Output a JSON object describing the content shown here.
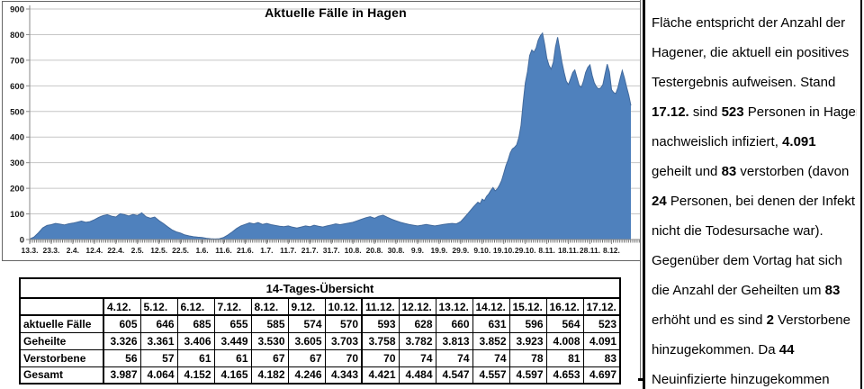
{
  "chart_data": {
    "type": "area",
    "title": "Aktuelle Fälle in Hagen",
    "series_name": "aktuelle Fälle",
    "legend": "none",
    "grid": true,
    "y_axis": {
      "min": 0,
      "max": 900,
      "step": 100
    },
    "x_axis": {
      "tick_interval_days": 10,
      "total_days": 279,
      "start_label": "13.3.",
      "end_label": "17.12.",
      "tick_labels": [
        "13.3.",
        "23.3.",
        "2.4.",
        "12.4.",
        "22.4.",
        "2.5.",
        "12.5.",
        "22.5.",
        "1.6.",
        "11.6.",
        "21.6.",
        "1.7.",
        "11.7.",
        "21.7.",
        "31.7.",
        "10.8.",
        "20.8.",
        "30.8.",
        "9.9.",
        "19.9.",
        "29.9.",
        "9.10.",
        "19.10.",
        "29.10.",
        "8.11.",
        "18.11.",
        "28.11.",
        "8.12."
      ]
    },
    "colors": {
      "area_fill": "#4f81bd",
      "area_edge": "#41699c",
      "gridline": "#c6c6c6",
      "axis": "#8a8a8a"
    },
    "points": [
      [
        0,
        2
      ],
      [
        2,
        10
      ],
      [
        4,
        26
      ],
      [
        6,
        45
      ],
      [
        8,
        55
      ],
      [
        10,
        58
      ],
      [
        12,
        63
      ],
      [
        14,
        60
      ],
      [
        16,
        57
      ],
      [
        18,
        61
      ],
      [
        20,
        64
      ],
      [
        22,
        68
      ],
      [
        24,
        72
      ],
      [
        26,
        67
      ],
      [
        28,
        70
      ],
      [
        30,
        77
      ],
      [
        32,
        86
      ],
      [
        34,
        93
      ],
      [
        36,
        97
      ],
      [
        38,
        91
      ],
      [
        40,
        88
      ],
      [
        42,
        101
      ],
      [
        44,
        97
      ],
      [
        46,
        92
      ],
      [
        48,
        98
      ],
      [
        50,
        94
      ],
      [
        52,
        104
      ],
      [
        54,
        89
      ],
      [
        56,
        83
      ],
      [
        58,
        88
      ],
      [
        60,
        74
      ],
      [
        62,
        63
      ],
      [
        64,
        50
      ],
      [
        66,
        38
      ],
      [
        68,
        30
      ],
      [
        70,
        25
      ],
      [
        72,
        18
      ],
      [
        74,
        14
      ],
      [
        76,
        11
      ],
      [
        78,
        9
      ],
      [
        80,
        8
      ],
      [
        82,
        5
      ],
      [
        84,
        3
      ],
      [
        86,
        2
      ],
      [
        88,
        3
      ],
      [
        90,
        8
      ],
      [
        92,
        18
      ],
      [
        94,
        30
      ],
      [
        96,
        43
      ],
      [
        98,
        53
      ],
      [
        100,
        59
      ],
      [
        102,
        65
      ],
      [
        104,
        61
      ],
      [
        106,
        66
      ],
      [
        108,
        59
      ],
      [
        110,
        63
      ],
      [
        112,
        58
      ],
      [
        114,
        55
      ],
      [
        116,
        52
      ],
      [
        118,
        50
      ],
      [
        120,
        53
      ],
      [
        122,
        48
      ],
      [
        124,
        45
      ],
      [
        126,
        49
      ],
      [
        128,
        53
      ],
      [
        130,
        50
      ],
      [
        132,
        56
      ],
      [
        134,
        52
      ],
      [
        136,
        49
      ],
      [
        138,
        53
      ],
      [
        140,
        57
      ],
      [
        142,
        61
      ],
      [
        144,
        58
      ],
      [
        146,
        61
      ],
      [
        148,
        64
      ],
      [
        150,
        67
      ],
      [
        152,
        73
      ],
      [
        154,
        79
      ],
      [
        156,
        85
      ],
      [
        158,
        89
      ],
      [
        160,
        83
      ],
      [
        162,
        91
      ],
      [
        164,
        95
      ],
      [
        166,
        87
      ],
      [
        168,
        79
      ],
      [
        170,
        73
      ],
      [
        172,
        67
      ],
      [
        174,
        63
      ],
      [
        176,
        59
      ],
      [
        178,
        56
      ],
      [
        180,
        53
      ],
      [
        182,
        56
      ],
      [
        184,
        59
      ],
      [
        186,
        56
      ],
      [
        188,
        53
      ],
      [
        190,
        56
      ],
      [
        192,
        59
      ],
      [
        194,
        61
      ],
      [
        196,
        63
      ],
      [
        198,
        61
      ],
      [
        200,
        70
      ],
      [
        202,
        88
      ],
      [
        204,
        108
      ],
      [
        206,
        128
      ],
      [
        208,
        146
      ],
      [
        209,
        140
      ],
      [
        210,
        158
      ],
      [
        211,
        152
      ],
      [
        212,
        168
      ],
      [
        213,
        178
      ],
      [
        214,
        192
      ],
      [
        215,
        203
      ],
      [
        216,
        190
      ],
      [
        217,
        198
      ],
      [
        218,
        212
      ],
      [
        219,
        230
      ],
      [
        220,
        258
      ],
      [
        221,
        288
      ],
      [
        222,
        310
      ],
      [
        223,
        338
      ],
      [
        224,
        354
      ],
      [
        225,
        360
      ],
      [
        226,
        370
      ],
      [
        227,
        398
      ],
      [
        228,
        445
      ],
      [
        229,
        535
      ],
      [
        230,
        612
      ],
      [
        231,
        655
      ],
      [
        232,
        718
      ],
      [
        233,
        740
      ],
      [
        234,
        732
      ],
      [
        235,
        748
      ],
      [
        236,
        778
      ],
      [
        237,
        796
      ],
      [
        238,
        806
      ],
      [
        239,
        762
      ],
      [
        240,
        708
      ],
      [
        241,
        680
      ],
      [
        242,
        665
      ],
      [
        243,
        692
      ],
      [
        244,
        752
      ],
      [
        245,
        790
      ],
      [
        246,
        742
      ],
      [
        247,
        692
      ],
      [
        248,
        652
      ],
      [
        249,
        618
      ],
      [
        250,
        605
      ],
      [
        251,
        628
      ],
      [
        252,
        652
      ],
      [
        253,
        662
      ],
      [
        254,
        632
      ],
      [
        255,
        602
      ],
      [
        256,
        594
      ],
      [
        257,
        618
      ],
      [
        258,
        652
      ],
      [
        259,
        672
      ],
      [
        260,
        682
      ],
      [
        261,
        642
      ],
      [
        262,
        612
      ],
      [
        263,
        596
      ],
      [
        264,
        588
      ],
      [
        265,
        592
      ],
      [
        266,
        605
      ],
      [
        267,
        646
      ],
      [
        268,
        685
      ],
      [
        269,
        655
      ],
      [
        270,
        585
      ],
      [
        271,
        574
      ],
      [
        272,
        570
      ],
      [
        273,
        593
      ],
      [
        274,
        628
      ],
      [
        275,
        660
      ],
      [
        276,
        631
      ],
      [
        277,
        596
      ],
      [
        278,
        564
      ],
      [
        279,
        523
      ]
    ]
  },
  "table": {
    "title": "14-Tages-Übersicht",
    "columns": [
      "4.12.",
      "5.12.",
      "6.12.",
      "7.12.",
      "8.12.",
      "9.12.",
      "10.12.",
      "11.12.",
      "12.12.",
      "13.12.",
      "14.12.",
      "15.12.",
      "16.12.",
      "17.12."
    ],
    "rows": [
      {
        "label": "aktuelle Fälle",
        "values": [
          "605",
          "646",
          "685",
          "655",
          "585",
          "574",
          "570",
          "593",
          "628",
          "660",
          "631",
          "596",
          "564",
          "523"
        ]
      },
      {
        "label": "Geheilte",
        "values": [
          "3.326",
          "3.361",
          "3.406",
          "3.449",
          "3.530",
          "3.605",
          "3.703",
          "3.758",
          "3.782",
          "3.813",
          "3.852",
          "3.923",
          "4.008",
          "4.091"
        ]
      },
      {
        "label": "Verstorbene",
        "values": [
          "56",
          "57",
          "61",
          "61",
          "67",
          "67",
          "70",
          "70",
          "74",
          "74",
          "74",
          "78",
          "81",
          "83"
        ]
      },
      {
        "label": "Gesamt",
        "values": [
          "3.987",
          "4.064",
          "4.152",
          "4.165",
          "4.182",
          "4.246",
          "4.343",
          "4.421",
          "4.484",
          "4.547",
          "4.557",
          "4.597",
          "4.653",
          "4.697"
        ]
      }
    ]
  },
  "panel": {
    "lines": [
      [
        {
          "t": "Fläche entspricht der Anzahl der"
        }
      ],
      [
        {
          "t": "Hagener, die aktuell ein positives"
        }
      ],
      [
        {
          "t": "Testergebnis aufweisen. Stand"
        }
      ],
      [
        {
          "t": "17.12.",
          "b": 1
        },
        {
          "t": " sind "
        },
        {
          "t": "523",
          "b": 1
        },
        {
          "t": " Personen in Hagen"
        }
      ],
      [
        {
          "t": "nachweislich infiziert, "
        },
        {
          "t": "4.091",
          "b": 1
        }
      ],
      [
        {
          "t": "geheilt und "
        },
        {
          "t": "83",
          "b": 1
        },
        {
          "t": " verstorben (davon"
        }
      ],
      [
        {
          "t": "24",
          "b": 1
        },
        {
          "t": " Personen, bei denen der Infekt"
        }
      ],
      [
        {
          "t": "nicht die Todesursache war)."
        }
      ],
      [
        {
          "t": "Gegenüber dem Vortag hat sich"
        }
      ],
      [
        {
          "t": "die Anzahl der Geheilten um "
        },
        {
          "t": "83",
          "b": 1
        }
      ],
      [
        {
          "t": "erhöht und es sind "
        },
        {
          "t": "2",
          "b": 1
        },
        {
          "t": " Verstorbene"
        }
      ],
      [
        {
          "t": "hinzugekommen. Da "
        },
        {
          "t": "44",
          "b": 1
        }
      ],
      [
        {
          "t": "Neuinfizierte hinzugekommen"
        }
      ]
    ]
  }
}
